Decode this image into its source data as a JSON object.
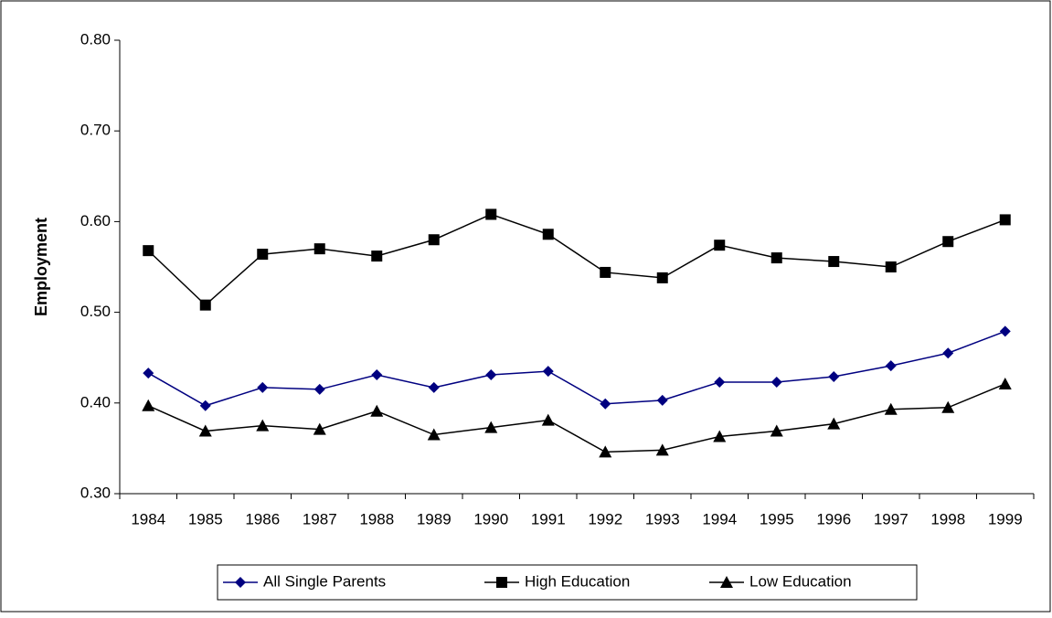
{
  "chart_data": {
    "type": "line",
    "y_label": "Employment",
    "categories": [
      "1984",
      "1985",
      "1986",
      "1987",
      "1988",
      "1989",
      "1990",
      "1991",
      "1992",
      "1993",
      "1994",
      "1995",
      "1996",
      "1997",
      "1998",
      "1999"
    ],
    "series": [
      {
        "name": "All Single Parents",
        "color": "#000080",
        "marker": "diamond",
        "values": [
          0.433,
          0.397,
          0.417,
          0.415,
          0.431,
          0.417,
          0.431,
          0.435,
          0.399,
          0.403,
          0.423,
          0.423,
          0.429,
          0.441,
          0.455,
          0.479
        ]
      },
      {
        "name": "High Education",
        "color": "#000000",
        "marker": "square",
        "values": [
          0.568,
          0.508,
          0.564,
          0.57,
          0.562,
          0.58,
          0.608,
          0.586,
          0.544,
          0.538,
          0.574,
          0.56,
          0.556,
          0.55,
          0.578,
          0.602
        ]
      },
      {
        "name": "Low Education",
        "color": "#000000",
        "marker": "triangle",
        "values": [
          0.397,
          0.369,
          0.375,
          0.371,
          0.391,
          0.365,
          0.373,
          0.381,
          0.346,
          0.348,
          0.363,
          0.369,
          0.377,
          0.393,
          0.395,
          0.421
        ]
      }
    ],
    "ylim": [
      0.3,
      0.8
    ],
    "yticks": [
      {
        "value": 0.3,
        "label": "0.30"
      },
      {
        "value": 0.4,
        "label": "0.40"
      },
      {
        "value": 0.5,
        "label": "0.50"
      },
      {
        "value": 0.6,
        "label": "0.60"
      },
      {
        "value": 0.7,
        "label": "0.70"
      },
      {
        "value": 0.8,
        "label": "0.80"
      }
    ],
    "grid": false,
    "legend": "bottom"
  }
}
